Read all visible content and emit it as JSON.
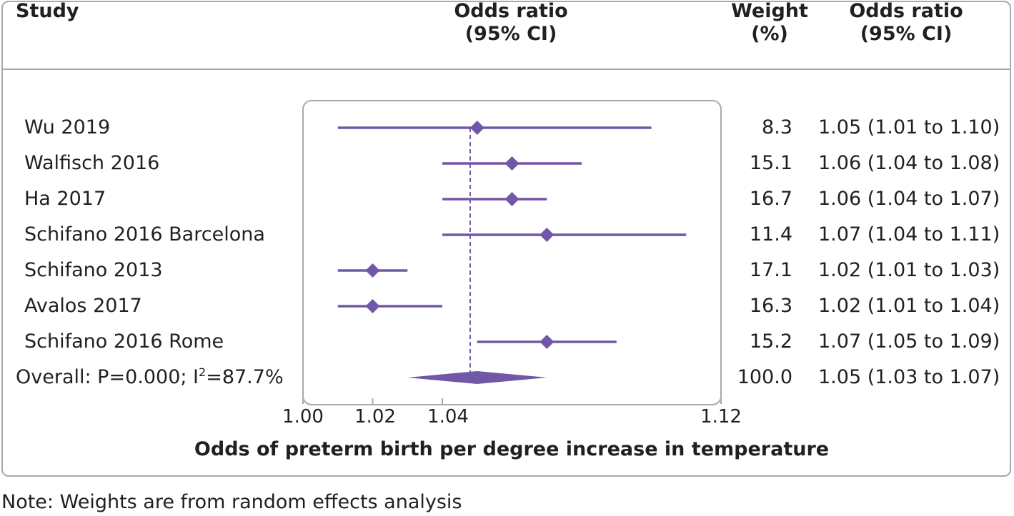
{
  "header": {
    "study": "Study",
    "or_line1": "Odds ratio",
    "or_line2": "(95% CI)",
    "weight_line1": "Weight",
    "weight_line2": "(%)",
    "orci_line1": "Odds ratio",
    "orci_line2": "(95% CI)"
  },
  "colors": {
    "marker": "#7057a7",
    "frame": "#a7a9ac",
    "text": "#231f20"
  },
  "chart_data": {
    "type": "forest",
    "xlabel": "Odds of preterm birth per degree increase in temperature",
    "xlim": [
      1.0,
      1.12
    ],
    "ticks": [
      "1.00",
      "1.02",
      "1.04",
      "1.12"
    ],
    "tick_values": [
      1.0,
      1.02,
      1.04,
      1.12
    ],
    "pooled_estimate": 1.048,
    "studies": [
      {
        "name": "Wu 2019",
        "or": 1.05,
        "lo": 1.01,
        "hi": 1.1,
        "weight": "8.3",
        "text": "1.05 (1.01 to 1.10)"
      },
      {
        "name": "Walfisch 2016",
        "or": 1.06,
        "lo": 1.04,
        "hi": 1.08,
        "weight": "15.1",
        "text": "1.06 (1.04 to 1.08)"
      },
      {
        "name": "Ha 2017",
        "or": 1.06,
        "lo": 1.04,
        "hi": 1.07,
        "weight": "16.7",
        "text": "1.06 (1.04 to 1.07)"
      },
      {
        "name": "Schifano 2016 Barcelona",
        "or": 1.07,
        "lo": 1.04,
        "hi": 1.11,
        "weight": "11.4",
        "text": "1.07 (1.04 to 1.11)"
      },
      {
        "name": "Schifano 2013",
        "or": 1.02,
        "lo": 1.01,
        "hi": 1.03,
        "weight": "17.1",
        "text": "1.02 (1.01 to 1.03)"
      },
      {
        "name": "Avalos 2017",
        "or": 1.02,
        "lo": 1.01,
        "hi": 1.04,
        "weight": "16.3",
        "text": "1.02 (1.01 to 1.04)"
      },
      {
        "name": "Schifano 2016 Rome",
        "or": 1.07,
        "lo": 1.05,
        "hi": 1.09,
        "weight": "15.2",
        "text": "1.07 (1.05 to 1.09)"
      }
    ],
    "overall": {
      "label_prefix": "Overall: P=0.000; I",
      "label_sup": "2",
      "label_suffix": "=87.7%",
      "or": 1.05,
      "lo": 1.03,
      "hi": 1.07,
      "weight": "100.0",
      "text": "1.05 (1.03 to 1.07)"
    }
  },
  "note": "Note: Weights are from random effects analysis"
}
